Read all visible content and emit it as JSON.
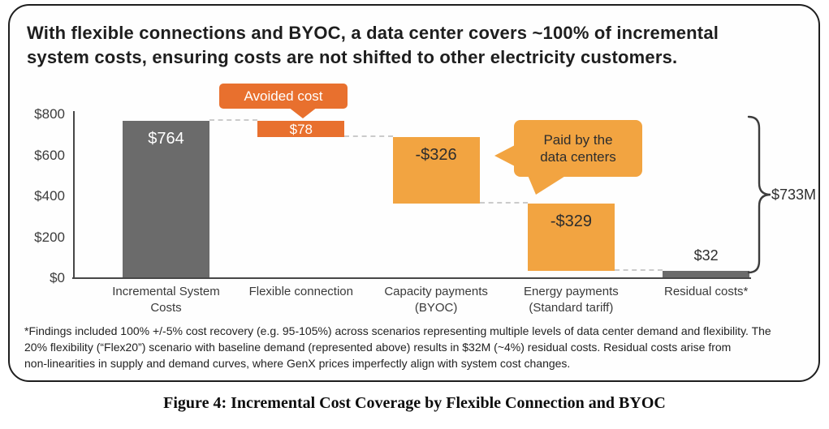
{
  "title": "With flexible connections and BYOC, a data center covers ~100% of incremental\nsystem costs, ensuring costs are not shifted to other electricity customers.",
  "caption": "Figure 4: Incremental Cost Coverage by Flexible Connection and BYOC",
  "footnote": "*Findings included 100% +/-5% cost recovery (e.g. 95-105%) across scenarios representing multiple levels of data center demand and flexibility. The\n20% flexibility (“Flex20”) scenario with baseline demand (represented above) results in $32M (~4%) residual costs. Residual costs arise from\nnon-linearities in supply and demand curves, where GenX prices imperfectly align with system cost changes.",
  "colors": {
    "gray_bar": "#6b6b6b",
    "red_orange": "#e8702e",
    "orange": "#f2a441",
    "dash": "#cbcbcb",
    "axis": "#474747",
    "text_dark": "#2d2d2d",
    "text_light": "#ffffff",
    "frame": "#1e1e1e"
  },
  "chart_data": {
    "type": "bar",
    "subtype": "waterfall",
    "title": "",
    "xlabel": "",
    "ylabel": "",
    "ylim": [
      0,
      800
    ],
    "grid": false,
    "units": "$M",
    "y_ticks": [
      {
        "label": "$800",
        "value": 800
      },
      {
        "label": "$600",
        "value": 600
      },
      {
        "label": "$400",
        "value": 400
      },
      {
        "label": "$200",
        "value": 200
      },
      {
        "label": "$0",
        "value": 0
      }
    ],
    "categories": [
      "Incremental System Costs",
      "Flexible connection",
      "Capacity payments (BYOC)",
      "Energy payments (Standard tariff)",
      "Residual costs*"
    ],
    "bars": [
      {
        "name": "incremental-system-costs",
        "category_lines": "Incremental System\nCosts",
        "label": "$764",
        "value": 764,
        "from": 0,
        "to": 764,
        "color_key": "gray_bar",
        "label_color_key": "text_light",
        "label_pos": "inside-top",
        "label_size": 20
      },
      {
        "name": "flexible-connection",
        "category_lines": "Flexible connection",
        "label": "$78",
        "value": -78,
        "from": 686,
        "to": 764,
        "color_key": "red_orange",
        "label_color_key": "text_light",
        "label_pos": "inside-center",
        "label_size": 17
      },
      {
        "name": "capacity-payments-byoc",
        "category_lines": "Capacity payments\n(BYOC)",
        "label": "-$326",
        "value": -326,
        "from": 360,
        "to": 686,
        "color_key": "orange",
        "label_color_key": "text_dark",
        "label_pos": "inside-top",
        "label_size": 20
      },
      {
        "name": "energy-payments-standard-tariff",
        "category_lines": "Energy payments\n(Standard tariff)",
        "label": "-$329",
        "value": -329,
        "from": 32,
        "to": 360,
        "color_key": "orange",
        "label_color_key": "text_dark",
        "label_pos": "inside-top",
        "label_size": 20
      },
      {
        "name": "residual-costs",
        "category_lines": "Residual costs*",
        "label": "$32",
        "value": 32,
        "from": 0,
        "to": 32,
        "color_key": "gray_bar",
        "label_color_key": "text_dark",
        "label_pos": "above",
        "label_size": 18
      }
    ],
    "connectors": [
      {
        "from_bar": 0,
        "to_bar": 1,
        "level": 764
      },
      {
        "from_bar": 1,
        "to_bar": 2,
        "level": 686
      },
      {
        "from_bar": 2,
        "to_bar": 3,
        "level": 360
      },
      {
        "from_bar": 3,
        "to_bar": 4,
        "level": 32
      }
    ],
    "callouts": [
      {
        "name": "avoided-cost",
        "text": "Avoided cost",
        "color_key": "red_orange",
        "text_color_key": "text_light",
        "points_to": "flexible-connection"
      },
      {
        "name": "paid-by-the-data-centers",
        "text": "Paid by the\ndata centers",
        "color_key": "orange",
        "text_color_key": "text_dark",
        "points_to": "capacity-payments-byoc, energy-payments-standard-tariff"
      }
    ],
    "bracket": {
      "label": "$733M",
      "covers": "sum of payments and avoided cost from $32 to $764"
    },
    "legend_position": "none"
  }
}
